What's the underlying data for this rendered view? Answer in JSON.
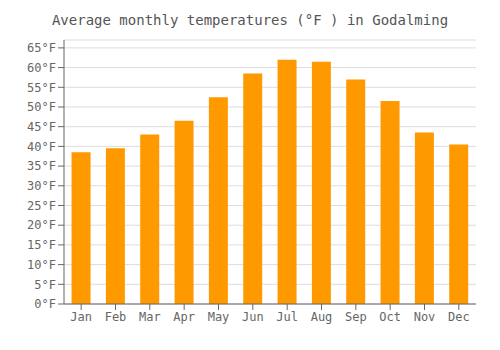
{
  "chart_data": {
    "type": "bar",
    "title": "Average monthly temperatures (°F ) in Godalming",
    "categories": [
      "Jan",
      "Feb",
      "Mar",
      "Apr",
      "May",
      "Jun",
      "Jul",
      "Aug",
      "Sep",
      "Oct",
      "Nov",
      "Dec"
    ],
    "values": [
      38.5,
      39.5,
      43.0,
      46.5,
      52.5,
      58.5,
      62.0,
      61.5,
      57.0,
      51.5,
      43.5,
      40.5
    ],
    "color": "#FF9900",
    "ylim": [
      0,
      67
    ],
    "yticks": [
      {
        "value": 0,
        "label": "0°F"
      },
      {
        "value": 5,
        "label": "5°F"
      },
      {
        "value": 10,
        "label": "10°F"
      },
      {
        "value": 15,
        "label": "15°F"
      },
      {
        "value": 20,
        "label": "20°F"
      },
      {
        "value": 25,
        "label": "25°F"
      },
      {
        "value": 30,
        "label": "30°F"
      },
      {
        "value": 35,
        "label": "35°F"
      },
      {
        "value": 40,
        "label": "40°F"
      },
      {
        "value": 45,
        "label": "45°F"
      },
      {
        "value": 50,
        "label": "50°F"
      },
      {
        "value": 55,
        "label": "55°F"
      },
      {
        "value": 60,
        "label": "60°F"
      },
      {
        "value": 65,
        "label": "65°F"
      }
    ],
    "grid": true
  }
}
